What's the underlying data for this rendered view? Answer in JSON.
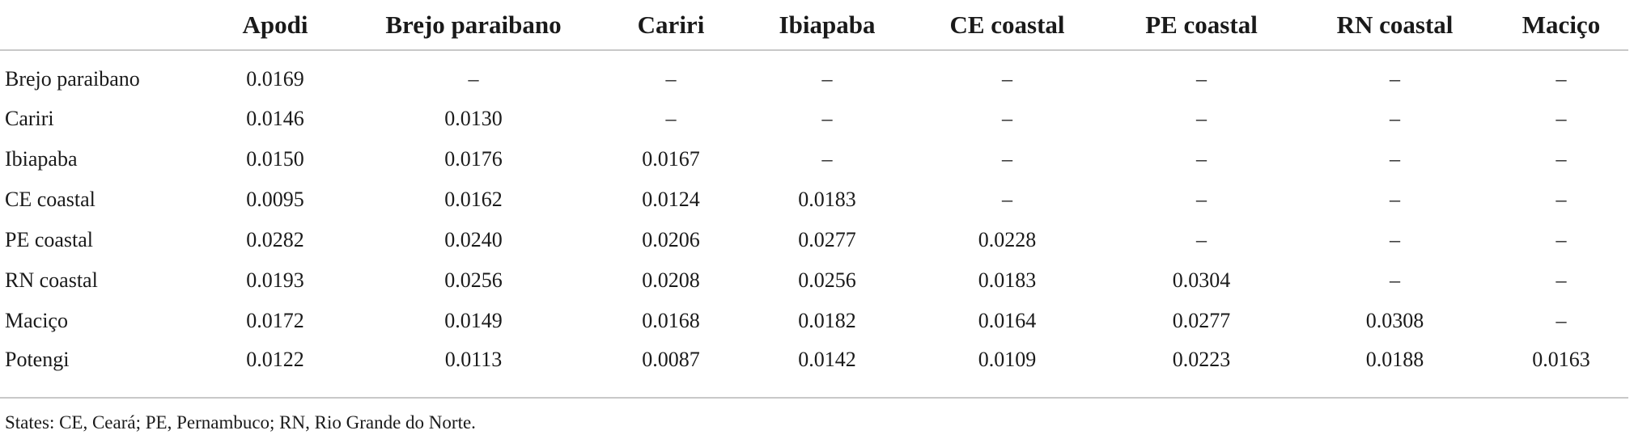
{
  "table": {
    "columns": [
      "Apodi",
      "Brejo paraibano",
      "Cariri",
      "Ibiapaba",
      "CE coastal",
      "PE coastal",
      "RN coastal",
      "Maciço"
    ],
    "rows": [
      {
        "label": "Brejo paraibano",
        "cells": [
          "0.0169",
          "–",
          "–",
          "–",
          "–",
          "–",
          "–",
          "–"
        ]
      },
      {
        "label": "Cariri",
        "cells": [
          "0.0146",
          "0.0130",
          "–",
          "–",
          "–",
          "–",
          "–",
          "–"
        ]
      },
      {
        "label": "Ibiapaba",
        "cells": [
          "0.0150",
          "0.0176",
          "0.0167",
          "–",
          "–",
          "–",
          "–",
          "–"
        ]
      },
      {
        "label": "CE coastal",
        "cells": [
          "0.0095",
          "0.0162",
          "0.0124",
          "0.0183",
          "–",
          "–",
          "–",
          "–"
        ]
      },
      {
        "label": "PE coastal",
        "cells": [
          "0.0282",
          "0.0240",
          "0.0206",
          "0.0277",
          "0.0228",
          "–",
          "–",
          "–"
        ]
      },
      {
        "label": "RN coastal",
        "cells": [
          "0.0193",
          "0.0256",
          "0.0208",
          "0.0256",
          "0.0183",
          "0.0304",
          "–",
          "–"
        ]
      },
      {
        "label": "Maciço",
        "cells": [
          "0.0172",
          "0.0149",
          "0.0168",
          "0.0182",
          "0.0164",
          "0.0277",
          "0.0308",
          "–"
        ]
      },
      {
        "label": "Potengi",
        "cells": [
          "0.0122",
          "0.0113",
          "0.0087",
          "0.0142",
          "0.0109",
          "0.0223",
          "0.0188",
          "0.0163"
        ]
      }
    ]
  },
  "footnote": "States: CE, Ceará; PE, Pernambuco; RN, Rio Grande do Norte."
}
